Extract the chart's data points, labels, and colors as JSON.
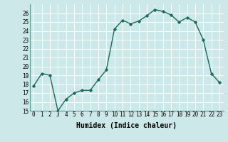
{
  "x": [
    0,
    1,
    2,
    3,
    4,
    5,
    6,
    7,
    8,
    9,
    10,
    11,
    12,
    13,
    14,
    15,
    16,
    17,
    18,
    19,
    20,
    21,
    22,
    23
  ],
  "y": [
    17.8,
    19.2,
    19.0,
    15.0,
    16.3,
    17.0,
    17.3,
    17.3,
    18.5,
    19.6,
    24.2,
    25.2,
    24.8,
    25.1,
    25.7,
    26.4,
    26.2,
    25.8,
    25.0,
    25.5,
    25.0,
    23.0,
    19.2,
    18.2
  ],
  "line_color": "#1a6b5a",
  "marker": "D",
  "marker_size": 1.8,
  "bg_color": "#cce8e8",
  "grid_color": "#b0d8d8",
  "xlabel": "Humidex (Indice chaleur)",
  "xlim": [
    -0.5,
    23.5
  ],
  "ylim": [
    15,
    27
  ],
  "yticks": [
    15,
    16,
    17,
    18,
    19,
    20,
    21,
    22,
    23,
    24,
    25,
    26
  ],
  "xticks": [
    0,
    1,
    2,
    3,
    4,
    5,
    6,
    7,
    8,
    9,
    10,
    11,
    12,
    13,
    14,
    15,
    16,
    17,
    18,
    19,
    20,
    21,
    22,
    23
  ],
  "tick_fontsize": 5.5,
  "xlabel_fontsize": 7.0,
  "linewidth": 1.0
}
